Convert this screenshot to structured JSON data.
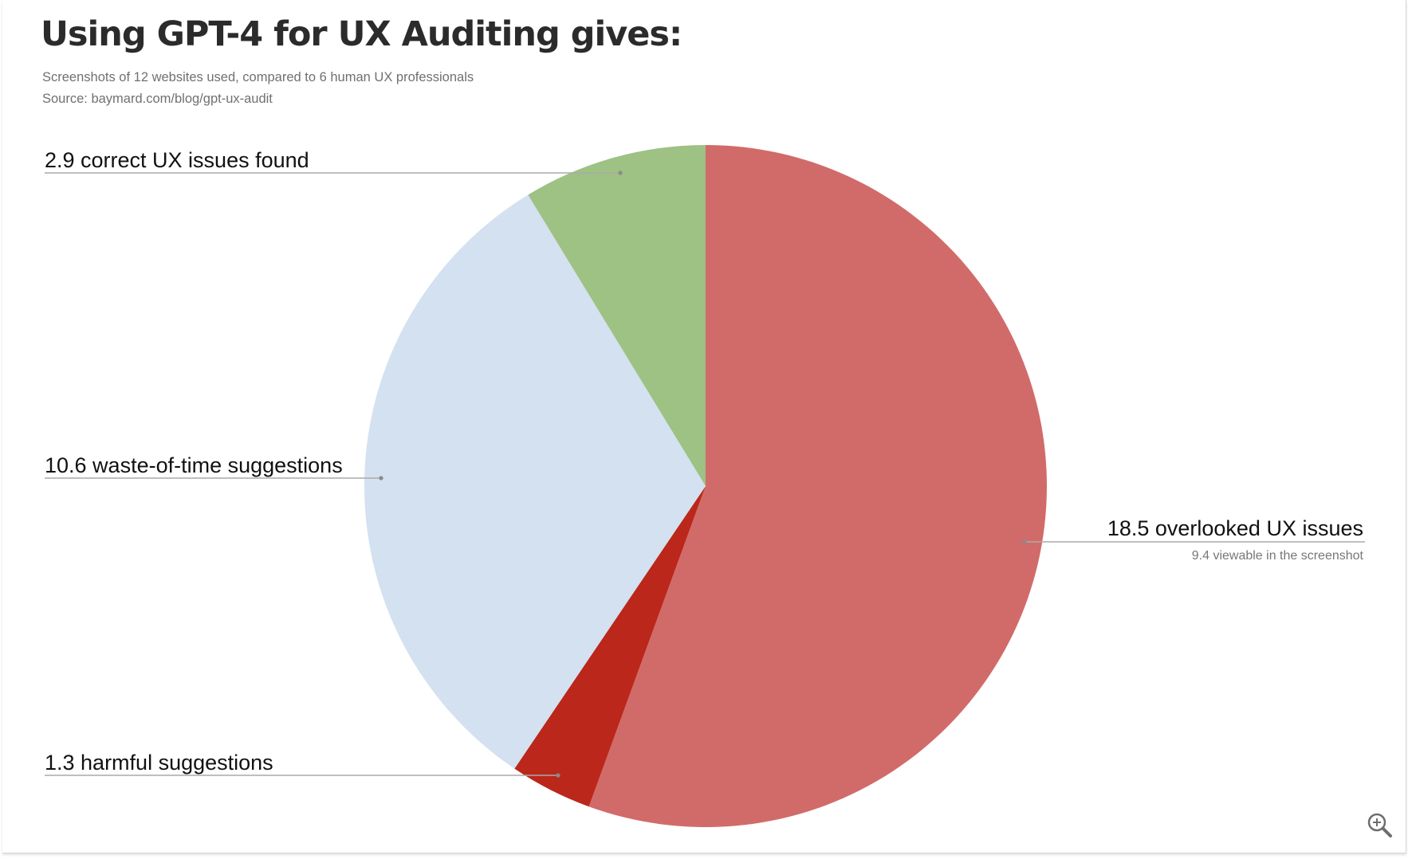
{
  "chart_data": {
    "type": "pie",
    "title": "Using GPT-4 for UX Auditing gives:",
    "subtitle": "Screenshots of 12 websites used, compared to 6 human UX professionals",
    "source": "Source: baymard.com/blog/gpt-ux-audit",
    "start_angle_deg": 0,
    "direction": "clockwise",
    "slices": [
      {
        "key": "overlooked",
        "value": 18.5,
        "label": "18.5 overlooked UX issues",
        "sublabel": "9.4 viewable in the screenshot",
        "color": "#d16b69",
        "label_side": "right"
      },
      {
        "key": "harmful",
        "value": 1.3,
        "label": "1.3 harmful suggestions",
        "sublabel": "",
        "color": "#bb271a",
        "label_side": "left"
      },
      {
        "key": "waste",
        "value": 10.6,
        "label": "10.6 waste-of-time suggestions",
        "sublabel": "",
        "color": "#d3e1f0",
        "label_side": "left"
      },
      {
        "key": "correct",
        "value": 2.9,
        "label": "2.9 correct UX issues found",
        "sublabel": "",
        "color": "#9ec184",
        "label_side": "left"
      }
    ],
    "leader_line_color": "#aaaaaa",
    "label_text_color": "#111111",
    "sublabel_text_color": "#777777"
  },
  "ui": {
    "zoom_icon": "magnifier-plus-icon"
  }
}
